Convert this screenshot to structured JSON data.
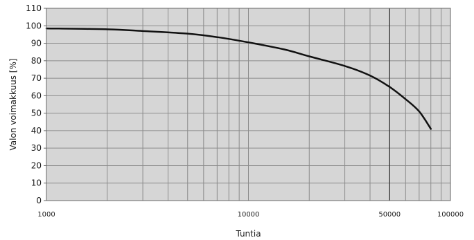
{
  "chart_data": {
    "type": "line",
    "xlabel": "Tuntia",
    "ylabel": "Valon voimakkuus [%]",
    "x_scale": "log",
    "xlim": [
      1000,
      100000
    ],
    "ylim": [
      0,
      110
    ],
    "grid": true,
    "x_ticks": [
      1000,
      10000,
      50000,
      100000
    ],
    "x_tick_labels": [
      "1000",
      "10000",
      "50000",
      "100000"
    ],
    "y_ticks": [
      0,
      10,
      20,
      30,
      40,
      50,
      60,
      70,
      80,
      90,
      100,
      110
    ],
    "y_tick_labels": [
      "0",
      "10",
      "20",
      "30",
      "40",
      "50",
      "60",
      "70",
      "80",
      "90",
      "100",
      "110"
    ],
    "highlight_x": 50000,
    "series": [
      {
        "x": [
          1000,
          2000,
          3000,
          5000,
          7000,
          10000,
          15000,
          20000,
          30000,
          40000,
          50000,
          60000,
          70000,
          80000
        ],
        "y": [
          98.5,
          98,
          97,
          95.5,
          93.5,
          90.5,
          86.5,
          82.5,
          77,
          71.5,
          65,
          58,
          51,
          41
        ]
      }
    ],
    "colors": {
      "plot_background": "#d6d6d6",
      "grid": "#8c8c8c",
      "highlight": "#3a3a3a",
      "line": "#111111"
    }
  }
}
